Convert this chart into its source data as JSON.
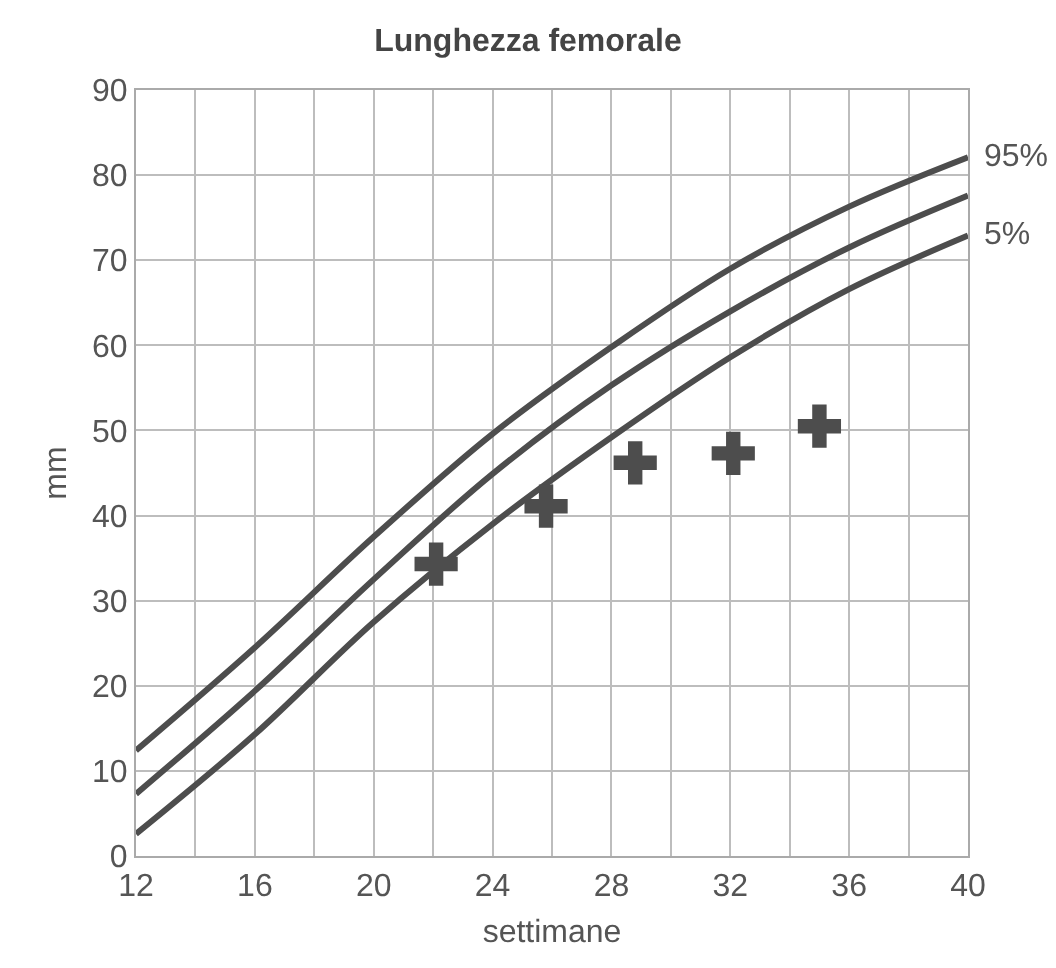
{
  "chart_data": {
    "type": "line",
    "title": "Lunghezza femorale",
    "xlabel": "settimane",
    "ylabel": "mm",
    "xlim": [
      12,
      40
    ],
    "xticks": [
      12,
      {
        "value": 14,
        "label": null
      },
      16,
      {
        "value": 18,
        "label": null
      },
      20,
      {
        "value": 22,
        "label": null
      },
      24,
      {
        "value": 26,
        "label": null
      },
      28,
      {
        "value": 30,
        "label": null
      },
      32,
      {
        "value": 34,
        "label": null
      },
      36,
      {
        "value": 38,
        "label": null
      },
      40
    ],
    "ylim": [
      0,
      90
    ],
    "yticks": [
      0,
      10,
      20,
      30,
      40,
      50,
      60,
      70,
      80,
      90
    ],
    "grid": true,
    "legend": false,
    "line_style": "solid",
    "series": [
      {
        "name": "95%",
        "color": "#4d4d4d",
        "x": [
          12,
          16,
          20,
          24,
          28,
          32,
          36,
          40
        ],
        "values": [
          12.4,
          24.5,
          37.5,
          49.6,
          59.8,
          69,
          76.3,
          82.1
        ]
      },
      {
        "color": "#4d4d4d",
        "x": [
          12,
          16,
          20,
          24,
          28,
          32,
          36,
          40
        ],
        "values": [
          7.3,
          19.4,
          32.5,
          44.9,
          55.3,
          64,
          71.5,
          77.6
        ]
      },
      {
        "name": "5%",
        "color": "#4d4d4d",
        "x": [
          12,
          16,
          20,
          24,
          28,
          32,
          36,
          40
        ],
        "values": [
          2.6,
          14.3,
          27.5,
          39,
          49.2,
          58.6,
          66.6,
          72.9
        ]
      },
      {
        "type": "scatter",
        "marker": "cross",
        "color": "#4d4d4d",
        "x": [
          22.1,
          25.8,
          28.8,
          32.1,
          35
        ],
        "values": [
          34.3,
          41.1,
          46.2,
          47.3,
          50.5
        ]
      }
    ]
  }
}
